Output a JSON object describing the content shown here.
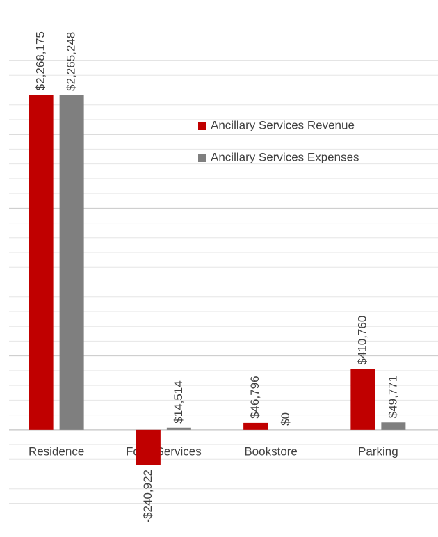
{
  "chart_data": {
    "type": "bar",
    "categories": [
      "Residence",
      "Food Services",
      "Bookstore",
      "Parking"
    ],
    "series": [
      {
        "name": "Ancillary Services Revenue",
        "color": "#c00000",
        "values": [
          2268175,
          -240922,
          46796,
          410760
        ],
        "value_labels": [
          "$2,268,175",
          "-$240,922",
          "$46,796",
          "$410,760"
        ]
      },
      {
        "name": "Ancillary Services Expenses",
        "color": "#7f7f7f",
        "values": [
          2265248,
          14514,
          0,
          49771
        ],
        "value_labels": [
          "$2,265,248",
          "$14,514",
          "$0",
          "$49,771"
        ]
      }
    ],
    "ylim": [
      -500000,
      2500000
    ],
    "yticks": [
      -500000,
      -400000,
      -300000,
      -200000,
      -100000,
      0,
      100000,
      200000,
      300000,
      400000,
      500000,
      600000,
      700000,
      800000,
      900000,
      1000000,
      1100000,
      1200000,
      1300000,
      1400000,
      1500000,
      1600000,
      1700000,
      1800000,
      1900000,
      2000000,
      2100000,
      2200000,
      2300000,
      2400000,
      2500000
    ],
    "grid": true
  }
}
